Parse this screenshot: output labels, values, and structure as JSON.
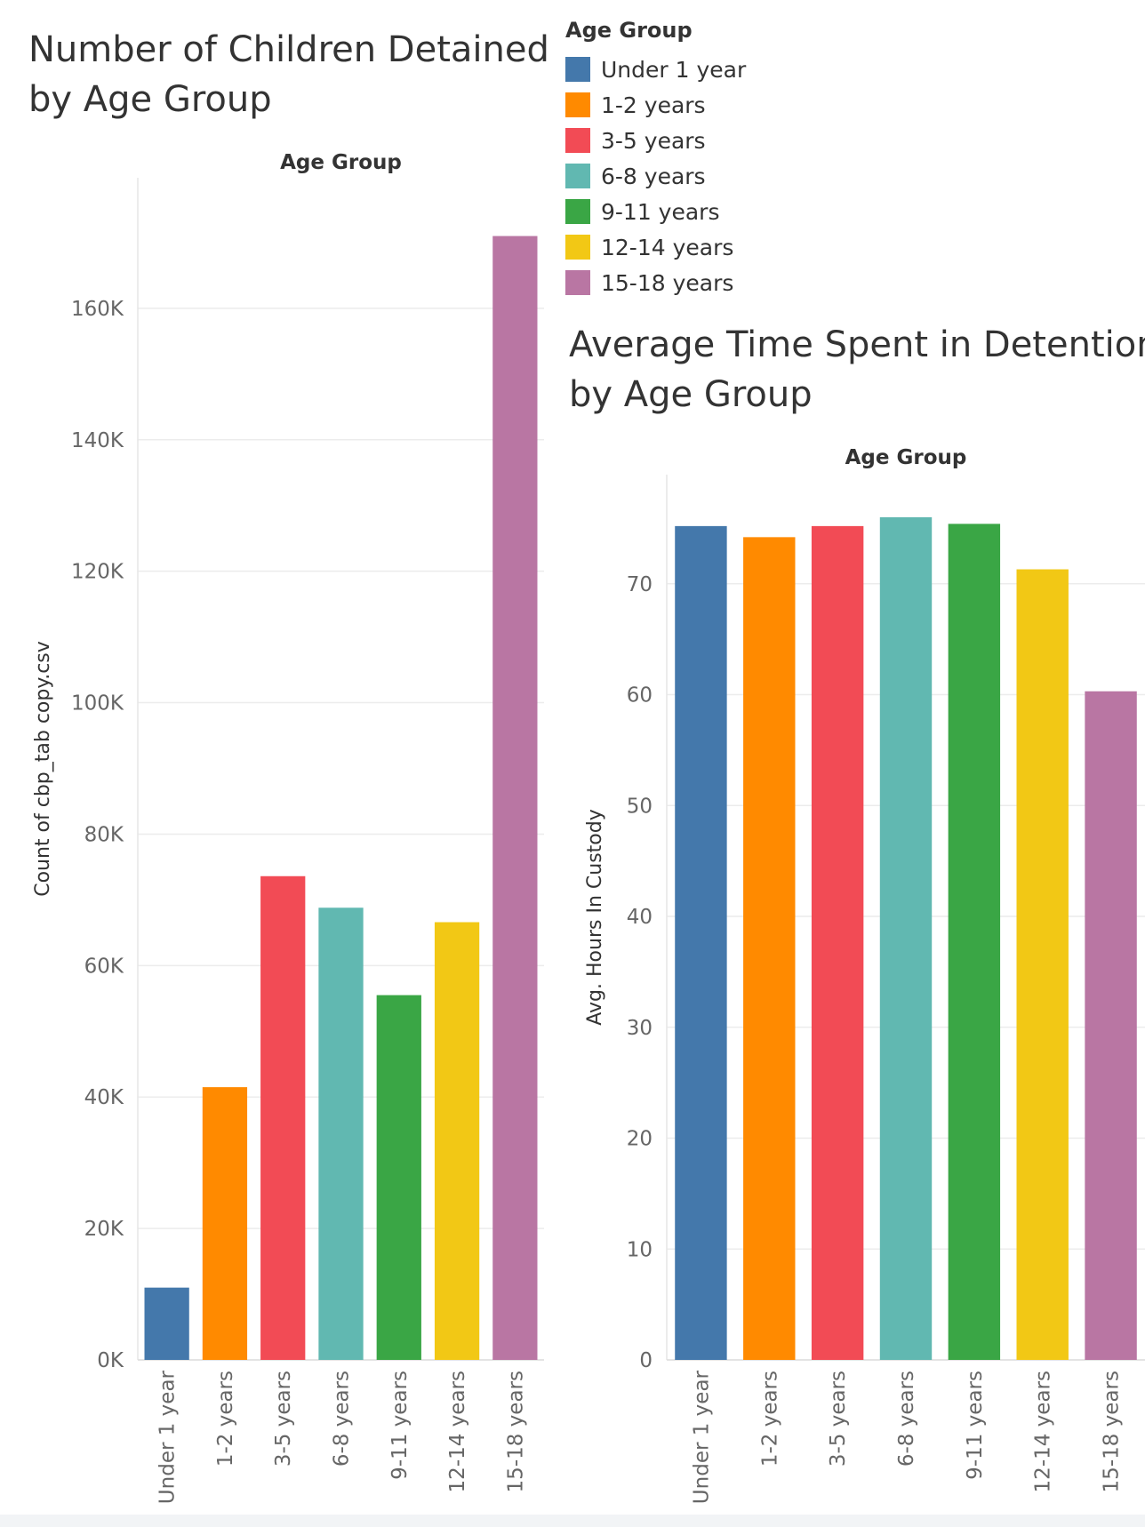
{
  "legend": {
    "title": "Age Group",
    "items": [
      {
        "label": "Under 1 year",
        "color": "#4478ab"
      },
      {
        "label": "1-2 years",
        "color": "#ff8a00"
      },
      {
        "label": "3-5 years",
        "color": "#f24b55"
      },
      {
        "label": "6-8 years",
        "color": "#61b8b1"
      },
      {
        "label": "9-11 years",
        "color": "#3aa645"
      },
      {
        "label": "12-14 years",
        "color": "#f2c815"
      },
      {
        "label": "15-18 years",
        "color": "#b976a3"
      }
    ]
  },
  "chart_data": [
    {
      "type": "bar",
      "title": "Number of Children Detained by Age Group",
      "title_lines": [
        "Number of Children Detained",
        "by Age Group"
      ],
      "header": "Age Group",
      "ylabel": "Count of cbp_tab copy.csv",
      "categories": [
        "Under 1 year",
        "1-2 years",
        "3-5 years",
        "6-8 years",
        "9-11 years",
        "12-14 years",
        "15-18 years"
      ],
      "values": [
        11000,
        41500,
        73600,
        68800,
        55500,
        66600,
        171000
      ],
      "ylim": [
        0,
        180000
      ],
      "yticks": [
        0,
        20000,
        40000,
        60000,
        80000,
        100000,
        120000,
        140000,
        160000
      ],
      "ytick_labels": [
        "0K",
        "20K",
        "40K",
        "60K",
        "80K",
        "100K",
        "120K",
        "140K",
        "160K"
      ],
      "grid": true
    },
    {
      "type": "bar",
      "title": "Average Time Spent in Detention by Age Group",
      "title_lines": [
        "Average Time Spent in Detention",
        "by Age Group"
      ],
      "header": "Age Group",
      "ylabel": "Avg. Hours In Custody",
      "categories": [
        "Under 1 year",
        "1-2 years",
        "3-5 years",
        "6-8 years",
        "9-11 years",
        "12-14 years",
        "15-18 years"
      ],
      "values": [
        75.2,
        74.2,
        75.2,
        76.0,
        75.4,
        71.3,
        60.3
      ],
      "ylim": [
        0,
        80
      ],
      "yticks": [
        0,
        10,
        20,
        30,
        40,
        50,
        60,
        70
      ],
      "ytick_labels": [
        "0",
        "10",
        "20",
        "30",
        "40",
        "50",
        "60",
        "70"
      ],
      "grid": true
    }
  ]
}
